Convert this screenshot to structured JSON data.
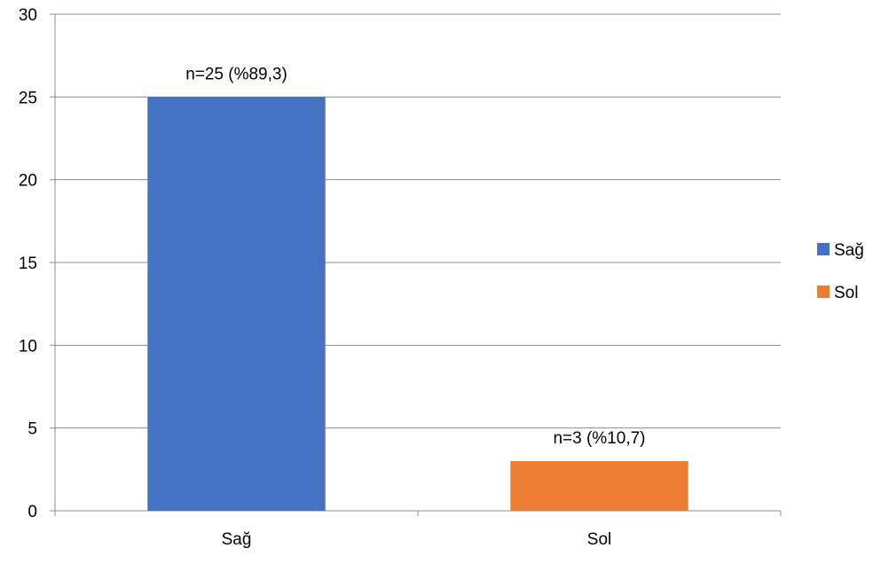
{
  "chart_data": {
    "type": "bar",
    "title": "",
    "xlabel": "",
    "ylabel": "",
    "categories": [
      "Sağ",
      "Sol"
    ],
    "values": [
      25,
      3
    ],
    "data_labels": [
      "n=25 (%89,3)",
      "n=3 (%10,7)"
    ],
    "colors": [
      "#4472C4",
      "#ED7D31"
    ],
    "ylim": [
      0,
      30
    ],
    "yticks": [
      0,
      5,
      10,
      15,
      20,
      25,
      30
    ],
    "grid": true,
    "legend": {
      "position": "right",
      "entries": [
        {
          "label": "Sağ",
          "color": "#4472C4"
        },
        {
          "label": "Sol",
          "color": "#ED7D31"
        }
      ]
    }
  }
}
